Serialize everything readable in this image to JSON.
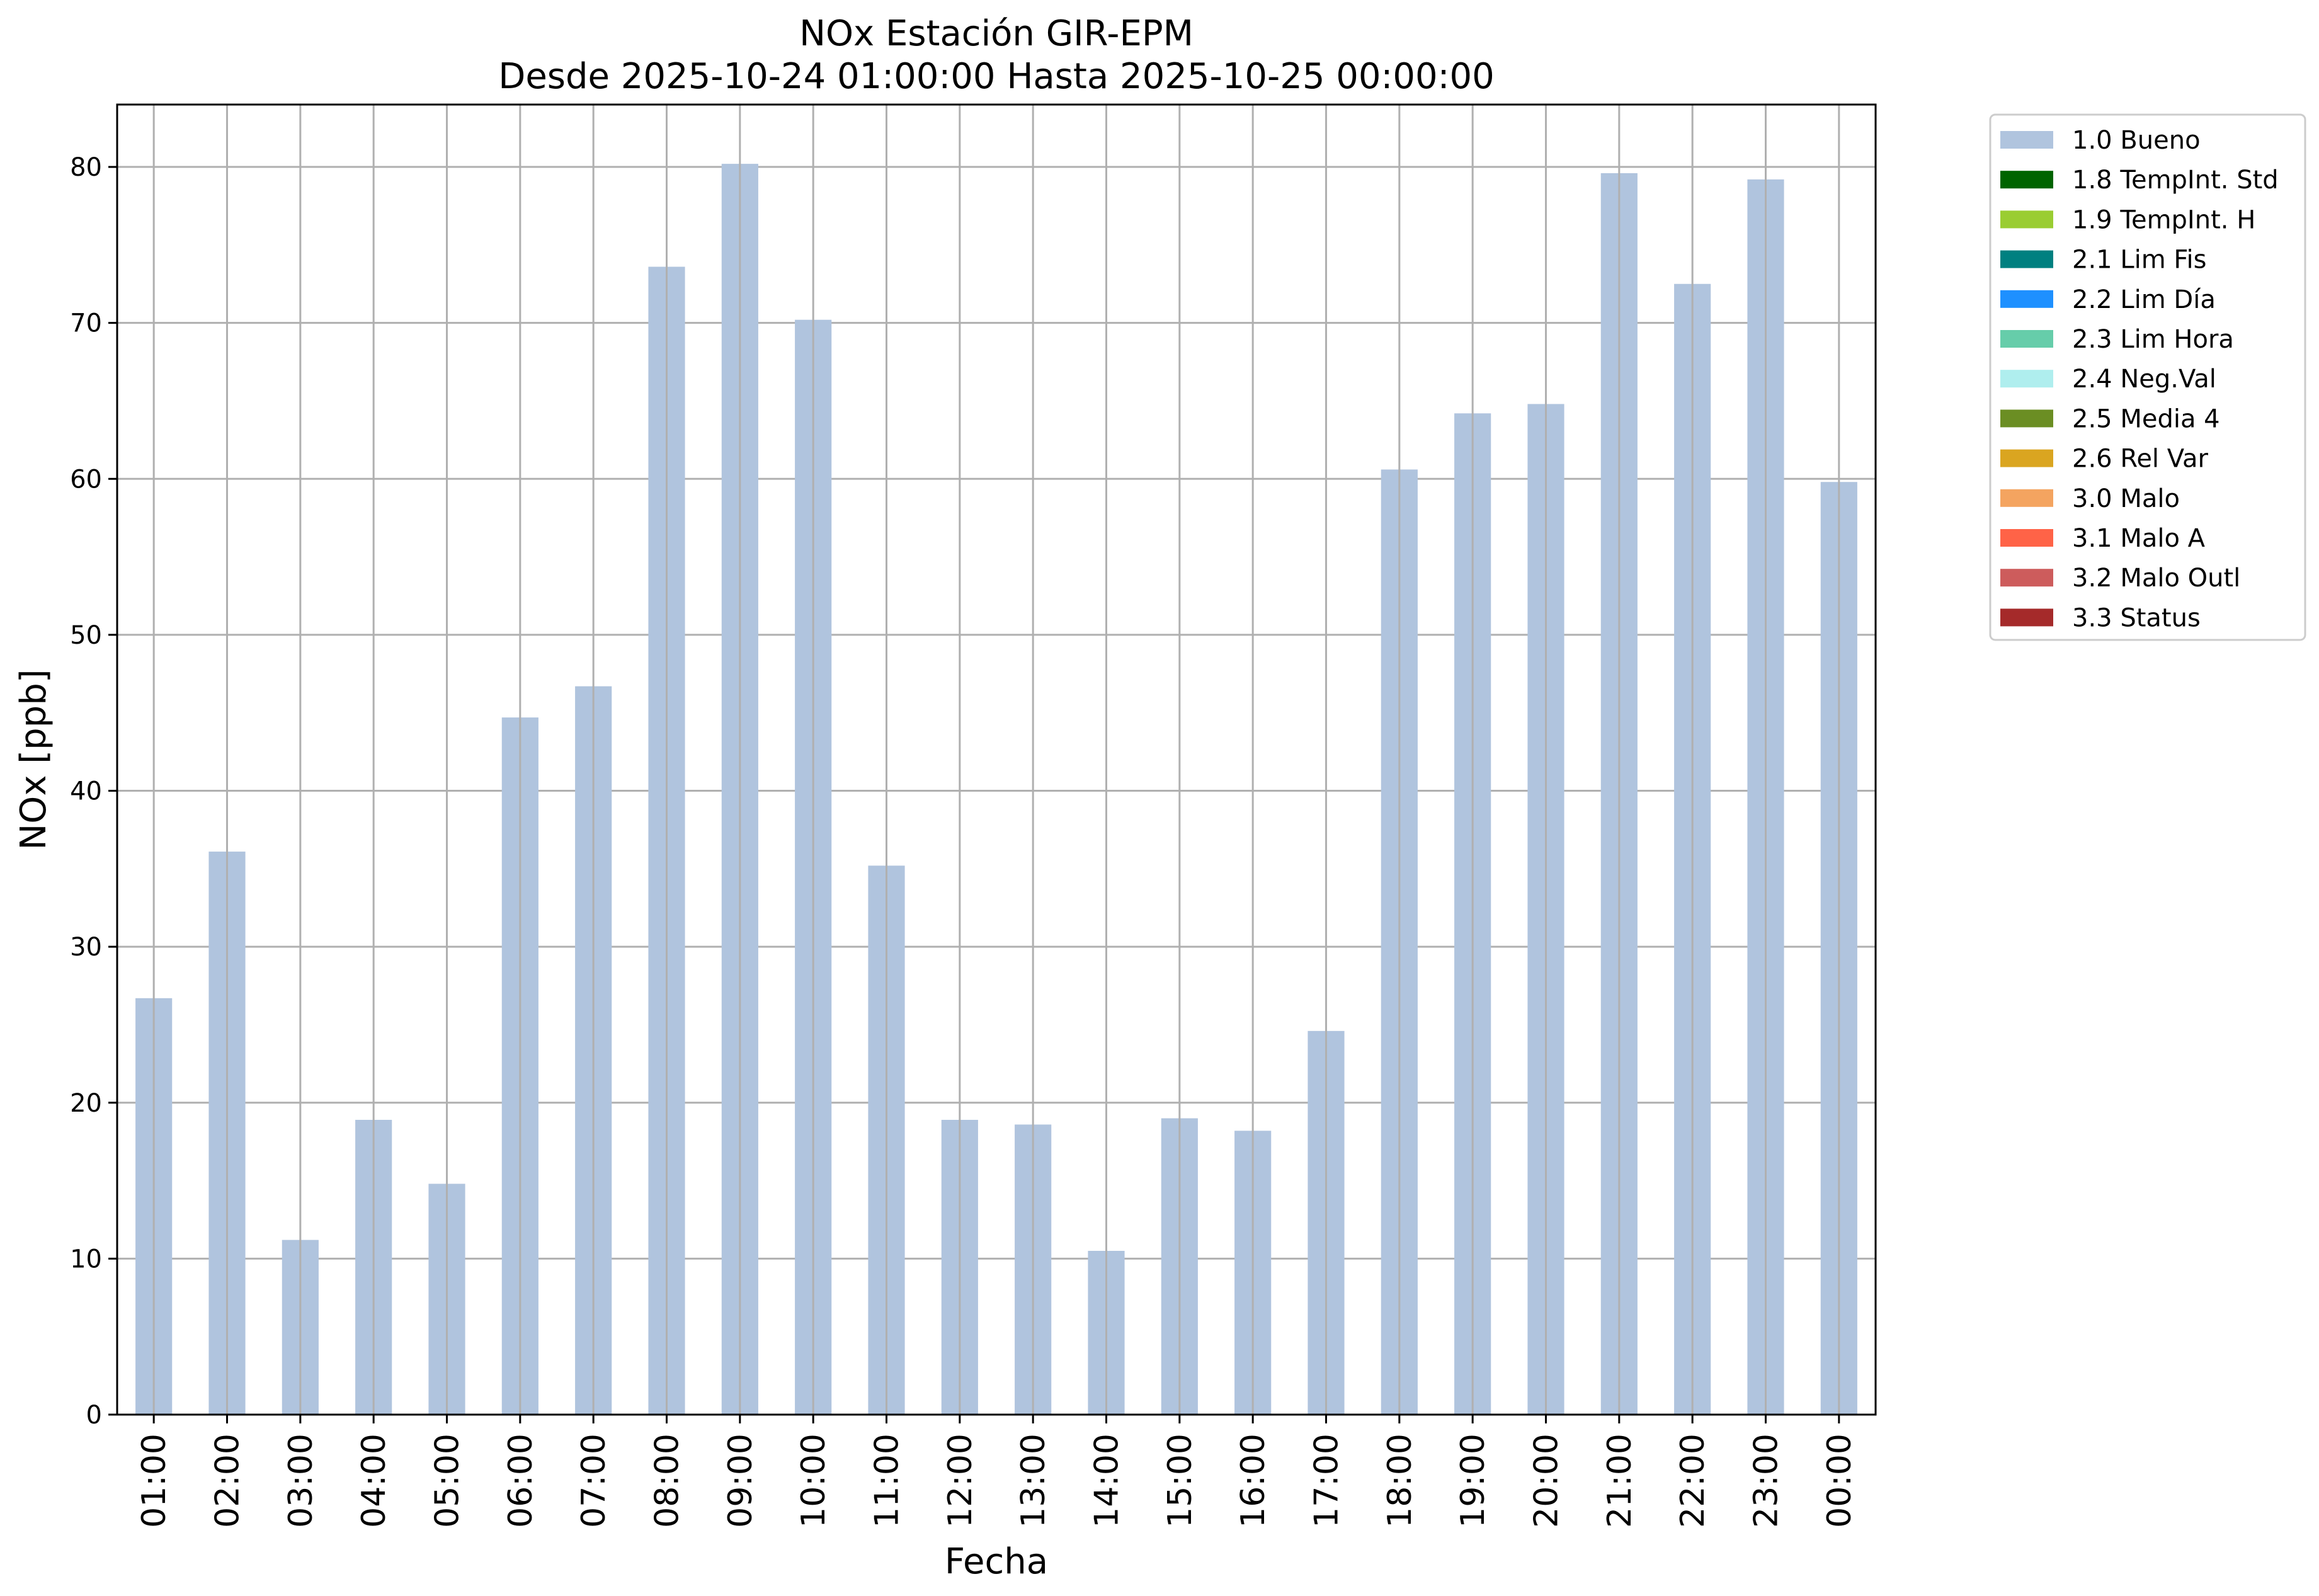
{
  "chart_data": {
    "type": "bar",
    "title": "NOx Estación GIR-EPM",
    "subtitle": "Desde 2025-10-24 01:00:00 Hasta 2025-10-25 00:00:00",
    "xlabel": "Fecha",
    "ylabel": "NOx [ppb]",
    "ylim": [
      0,
      84
    ],
    "yticks": [
      0,
      10,
      20,
      30,
      40,
      50,
      60,
      70,
      80
    ],
    "grid": true,
    "legend_position": "outside-top-right",
    "categories": [
      "01:00",
      "02:00",
      "03:00",
      "04:00",
      "05:00",
      "06:00",
      "07:00",
      "08:00",
      "09:00",
      "10:00",
      "11:00",
      "12:00",
      "13:00",
      "14:00",
      "15:00",
      "16:00",
      "17:00",
      "18:00",
      "19:00",
      "20:00",
      "21:00",
      "22:00",
      "23:00",
      "00:00"
    ],
    "series": [
      {
        "name": "1.0 Bueno",
        "color": "#b0c4de",
        "values": [
          26.7,
          36.1,
          11.2,
          18.9,
          14.8,
          44.7,
          46.7,
          73.6,
          80.2,
          70.2,
          35.2,
          18.9,
          18.6,
          10.5,
          19.0,
          18.2,
          24.6,
          60.6,
          64.2,
          64.8,
          79.6,
          72.5,
          79.2,
          59.8
        ]
      }
    ],
    "legend": [
      {
        "label": "1.0 Bueno",
        "color": "#b0c4de"
      },
      {
        "label": "1.8 TempInt. Std",
        "color": "#006400"
      },
      {
        "label": "1.9 TempInt. H",
        "color": "#9acd32"
      },
      {
        "label": "2.1 Lim Fis",
        "color": "#008080"
      },
      {
        "label": "2.2 Lim Día",
        "color": "#1e90ff"
      },
      {
        "label": "2.3 Lim Hora",
        "color": "#66cdaa"
      },
      {
        "label": "2.4 Neg.Val",
        "color": "#afeeee"
      },
      {
        "label": "2.5 Media 4",
        "color": "#6b8e23"
      },
      {
        "label": "2.6 Rel Var",
        "color": "#daa520"
      },
      {
        "label": "3.0 Malo",
        "color": "#f4a460"
      },
      {
        "label": "3.1 Malo A",
        "color": "#ff6347"
      },
      {
        "label": "3.2 Malo Outl",
        "color": "#cd5c5c"
      },
      {
        "label": "3.3 Status",
        "color": "#a52a2a"
      }
    ]
  }
}
